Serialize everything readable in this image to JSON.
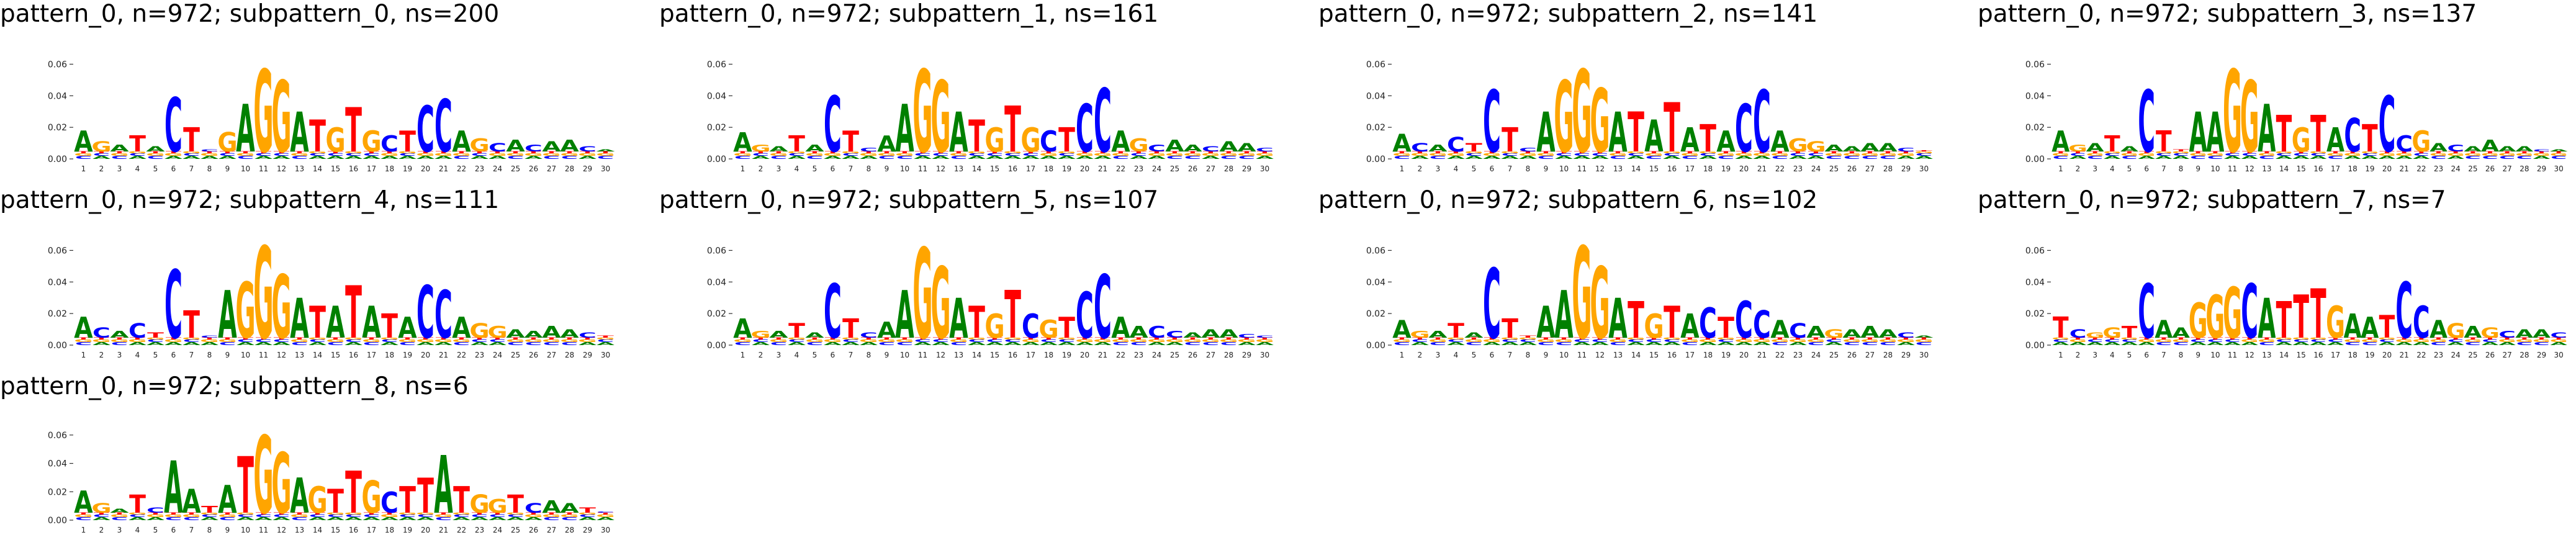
{
  "chart_data": [
    {
      "type": "sequence_logo",
      "title": "pattern_0, n=972; subpattern_0, ns=200",
      "ylim": [
        0,
        0.07
      ],
      "yticks": [
        "0.00",
        "0.02",
        "0.04",
        "0.06"
      ],
      "positions": [
        1,
        2,
        3,
        4,
        5,
        6,
        7,
        8,
        9,
        10,
        11,
        12,
        13,
        14,
        15,
        16,
        17,
        18,
        19,
        20,
        21,
        22,
        23,
        24,
        25,
        26,
        27,
        28,
        29,
        30
      ],
      "stacks": [
        [
          "A",
          0.018
        ],
        [
          "G",
          0.011
        ],
        [
          "A",
          0.009
        ],
        [
          "T",
          0.015
        ],
        [
          "A",
          0.008
        ],
        [
          "C",
          0.039
        ],
        [
          "T",
          0.02
        ],
        [
          "C",
          0.006
        ],
        [
          "G",
          0.017
        ],
        [
          "A",
          0.035
        ],
        [
          "G",
          0.057
        ],
        [
          "G",
          0.05
        ],
        [
          "A",
          0.03
        ],
        [
          "T",
          0.025
        ],
        [
          "G",
          0.02
        ],
        [
          "T",
          0.033
        ],
        [
          "G",
          0.018
        ],
        [
          "C",
          0.015
        ],
        [
          "T",
          0.018
        ],
        [
          "C",
          0.034
        ],
        [
          "C",
          0.038
        ],
        [
          "A",
          0.018
        ],
        [
          "G",
          0.013
        ],
        [
          "C",
          0.01
        ],
        [
          "A",
          0.012
        ],
        [
          "C",
          0.009
        ],
        [
          "A",
          0.011
        ],
        [
          "A",
          0.012
        ],
        [
          "C",
          0.008
        ],
        [
          "A",
          0.006
        ]
      ]
    },
    {
      "type": "sequence_logo",
      "title": "pattern_0, n=972; subpattern_1, ns=161",
      "ylim": [
        0,
        0.07
      ],
      "yticks": [
        "0.00",
        "0.02",
        "0.04",
        "0.06"
      ],
      "positions": [
        1,
        2,
        3,
        4,
        5,
        6,
        7,
        8,
        9,
        10,
        11,
        12,
        13,
        14,
        15,
        16,
        17,
        18,
        19,
        20,
        21,
        22,
        23,
        24,
        25,
        26,
        27,
        28,
        29,
        30
      ],
      "stacks": [
        [
          "A",
          0.017
        ],
        [
          "G",
          0.009
        ],
        [
          "A",
          0.008
        ],
        [
          "T",
          0.015
        ],
        [
          "A",
          0.009
        ],
        [
          "C",
          0.04
        ],
        [
          "T",
          0.018
        ],
        [
          "C",
          0.007
        ],
        [
          "A",
          0.015
        ],
        [
          "A",
          0.035
        ],
        [
          "G",
          0.057
        ],
        [
          "G",
          0.05
        ],
        [
          "A",
          0.03
        ],
        [
          "T",
          0.025
        ],
        [
          "G",
          0.02
        ],
        [
          "T",
          0.034
        ],
        [
          "G",
          0.02
        ],
        [
          "C",
          0.018
        ],
        [
          "T",
          0.02
        ],
        [
          "C",
          0.035
        ],
        [
          "C",
          0.045
        ],
        [
          "A",
          0.018
        ],
        [
          "G",
          0.013
        ],
        [
          "C",
          0.009
        ],
        [
          "A",
          0.012
        ],
        [
          "A",
          0.009
        ],
        [
          "C",
          0.008
        ],
        [
          "A",
          0.011
        ],
        [
          "A",
          0.01
        ],
        [
          "C",
          0.007
        ]
      ]
    },
    {
      "type": "sequence_logo",
      "title": "pattern_0, n=972; subpattern_2, ns=141",
      "ylim": [
        0,
        0.07
      ],
      "yticks": [
        "0.00",
        "0.02",
        "0.04",
        "0.06"
      ],
      "positions": [
        1,
        2,
        3,
        4,
        5,
        6,
        7,
        8,
        9,
        10,
        11,
        12,
        13,
        14,
        15,
        16,
        17,
        18,
        19,
        20,
        21,
        22,
        23,
        24,
        25,
        26,
        27,
        28,
        29,
        30
      ],
      "stacks": [
        [
          "A",
          0.016
        ],
        [
          "C",
          0.01
        ],
        [
          "A",
          0.009
        ],
        [
          "C",
          0.014
        ],
        [
          "T",
          0.01
        ],
        [
          "C",
          0.044
        ],
        [
          "T",
          0.02
        ],
        [
          "C",
          0.007
        ],
        [
          "A",
          0.03
        ],
        [
          "G",
          0.05
        ],
        [
          "G",
          0.057
        ],
        [
          "G",
          0.045
        ],
        [
          "A",
          0.03
        ],
        [
          "T",
          0.03
        ],
        [
          "A",
          0.025
        ],
        [
          "T",
          0.036
        ],
        [
          "A",
          0.02
        ],
        [
          "T",
          0.022
        ],
        [
          "A",
          0.018
        ],
        [
          "C",
          0.035
        ],
        [
          "C",
          0.044
        ],
        [
          "A",
          0.018
        ],
        [
          "G",
          0.013
        ],
        [
          "G",
          0.011
        ],
        [
          "A",
          0.009
        ],
        [
          "A",
          0.008
        ],
        [
          "A",
          0.01
        ],
        [
          "A",
          0.01
        ],
        [
          "C",
          0.007
        ],
        [
          "T",
          0.005
        ]
      ]
    },
    {
      "type": "sequence_logo",
      "title": "pattern_0, n=972; subpattern_3, ns=137",
      "ylim": [
        0,
        0.07
      ],
      "yticks": [
        "0.00",
        "0.02",
        "0.04",
        "0.06"
      ],
      "positions": [
        1,
        2,
        3,
        4,
        5,
        6,
        7,
        8,
        9,
        10,
        11,
        12,
        13,
        14,
        15,
        16,
        17,
        18,
        19,
        20,
        21,
        22,
        23,
        24,
        25,
        26,
        27,
        28,
        29,
        30
      ],
      "stacks": [
        [
          "A",
          0.018
        ],
        [
          "G",
          0.009
        ],
        [
          "A",
          0.01
        ],
        [
          "T",
          0.015
        ],
        [
          "A",
          0.008
        ],
        [
          "C",
          0.044
        ],
        [
          "T",
          0.018
        ],
        [
          "T",
          0.006
        ],
        [
          "A",
          0.03
        ],
        [
          "A",
          0.03
        ],
        [
          "G",
          0.057
        ],
        [
          "G",
          0.05
        ],
        [
          "A",
          0.035
        ],
        [
          "T",
          0.028
        ],
        [
          "G",
          0.02
        ],
        [
          "T",
          0.028
        ],
        [
          "A",
          0.02
        ],
        [
          "C",
          0.026
        ],
        [
          "T",
          0.022
        ],
        [
          "C",
          0.04
        ],
        [
          "C",
          0.015
        ],
        [
          "G",
          0.018
        ],
        [
          "A",
          0.01
        ],
        [
          "C",
          0.009
        ],
        [
          "A",
          0.008
        ],
        [
          "A",
          0.012
        ],
        [
          "A",
          0.008
        ],
        [
          "A",
          0.008
        ],
        [
          "C",
          0.006
        ],
        [
          "A",
          0.006
        ]
      ]
    },
    {
      "type": "sequence_logo",
      "title": "pattern_0, n=972; subpattern_4, ns=111",
      "ylim": [
        0,
        0.07
      ],
      "yticks": [
        "0.00",
        "0.02",
        "0.04",
        "0.06"
      ],
      "positions": [
        1,
        2,
        3,
        4,
        5,
        6,
        7,
        8,
        9,
        10,
        11,
        12,
        13,
        14,
        15,
        16,
        17,
        18,
        19,
        20,
        21,
        22,
        23,
        24,
        25,
        26,
        27,
        28,
        29,
        30
      ],
      "stacks": [
        [
          "A",
          0.018
        ],
        [
          "C",
          0.011
        ],
        [
          "A",
          0.009
        ],
        [
          "C",
          0.014
        ],
        [
          "T",
          0.008
        ],
        [
          "C",
          0.048
        ],
        [
          "T",
          0.022
        ],
        [
          "C",
          0.006
        ],
        [
          "A",
          0.035
        ],
        [
          "G",
          0.04
        ],
        [
          "G",
          0.063
        ],
        [
          "G",
          0.045
        ],
        [
          "A",
          0.03
        ],
        [
          "T",
          0.025
        ],
        [
          "A",
          0.025
        ],
        [
          "T",
          0.038
        ],
        [
          "A",
          0.025
        ],
        [
          "T",
          0.02
        ],
        [
          "A",
          0.018
        ],
        [
          "C",
          0.038
        ],
        [
          "C",
          0.035
        ],
        [
          "A",
          0.018
        ],
        [
          "G",
          0.014
        ],
        [
          "G",
          0.012
        ],
        [
          "A",
          0.01
        ],
        [
          "A",
          0.009
        ],
        [
          "A",
          0.012
        ],
        [
          "A",
          0.01
        ],
        [
          "C",
          0.008
        ],
        [
          "T",
          0.006
        ]
      ]
    },
    {
      "type": "sequence_logo",
      "title": "pattern_0, n=972; subpattern_5, ns=107",
      "ylim": [
        0,
        0.07
      ],
      "yticks": [
        "0.00",
        "0.02",
        "0.04",
        "0.06"
      ],
      "positions": [
        1,
        2,
        3,
        4,
        5,
        6,
        7,
        8,
        9,
        10,
        11,
        12,
        13,
        14,
        15,
        16,
        17,
        18,
        19,
        20,
        21,
        22,
        23,
        24,
        25,
        26,
        27,
        28,
        29,
        30
      ],
      "stacks": [
        [
          "A",
          0.017
        ],
        [
          "G",
          0.009
        ],
        [
          "A",
          0.009
        ],
        [
          "T",
          0.014
        ],
        [
          "A",
          0.008
        ],
        [
          "C",
          0.039
        ],
        [
          "T",
          0.017
        ],
        [
          "C",
          0.008
        ],
        [
          "A",
          0.015
        ],
        [
          "A",
          0.035
        ],
        [
          "G",
          0.062
        ],
        [
          "G",
          0.05
        ],
        [
          "A",
          0.03
        ],
        [
          "T",
          0.025
        ],
        [
          "G",
          0.02
        ],
        [
          "T",
          0.035
        ],
        [
          "C",
          0.02
        ],
        [
          "G",
          0.016
        ],
        [
          "T",
          0.018
        ],
        [
          "C",
          0.034
        ],
        [
          "C",
          0.045
        ],
        [
          "A",
          0.018
        ],
        [
          "A",
          0.012
        ],
        [
          "C",
          0.012
        ],
        [
          "C",
          0.009
        ],
        [
          "A",
          0.008
        ],
        [
          "A",
          0.01
        ],
        [
          "A",
          0.01
        ],
        [
          "C",
          0.007
        ],
        [
          "C",
          0.006
        ]
      ]
    },
    {
      "type": "sequence_logo",
      "title": "pattern_0, n=972; subpattern_6, ns=102",
      "ylim": [
        0,
        0.07
      ],
      "yticks": [
        "0.00",
        "0.02",
        "0.04",
        "0.06"
      ],
      "positions": [
        1,
        2,
        3,
        4,
        5,
        6,
        7,
        8,
        9,
        10,
        11,
        12,
        13,
        14,
        15,
        16,
        17,
        18,
        19,
        20,
        21,
        22,
        23,
        24,
        25,
        26,
        27,
        28,
        29,
        30
      ],
      "stacks": [
        [
          "A",
          0.016
        ],
        [
          "G",
          0.009
        ],
        [
          "A",
          0.009
        ],
        [
          "T",
          0.014
        ],
        [
          "A",
          0.008
        ],
        [
          "C",
          0.049
        ],
        [
          "T",
          0.017
        ],
        [
          "T",
          0.006
        ],
        [
          "A",
          0.025
        ],
        [
          "A",
          0.035
        ],
        [
          "G",
          0.063
        ],
        [
          "G",
          0.05
        ],
        [
          "A",
          0.03
        ],
        [
          "T",
          0.028
        ],
        [
          "G",
          0.02
        ],
        [
          "T",
          0.025
        ],
        [
          "A",
          0.02
        ],
        [
          "C",
          0.024
        ],
        [
          "T",
          0.018
        ],
        [
          "C",
          0.028
        ],
        [
          "C",
          0.022
        ],
        [
          "A",
          0.016
        ],
        [
          "C",
          0.014
        ],
        [
          "A",
          0.012
        ],
        [
          "G",
          0.01
        ],
        [
          "A",
          0.01
        ],
        [
          "A",
          0.012
        ],
        [
          "A",
          0.01
        ],
        [
          "C",
          0.008
        ],
        [
          "A",
          0.006
        ]
      ]
    },
    {
      "type": "sequence_logo",
      "title": "pattern_0, n=972; subpattern_7, ns=7",
      "ylim": [
        0,
        0.07
      ],
      "yticks": [
        "0.00",
        "0.02",
        "0.04",
        "0.06"
      ],
      "positions": [
        1,
        2,
        3,
        4,
        5,
        6,
        7,
        8,
        9,
        10,
        11,
        12,
        13,
        14,
        15,
        16,
        17,
        18,
        19,
        20,
        21,
        22,
        23,
        24,
        25,
        26,
        27,
        28,
        29,
        30
      ],
      "stacks": [
        [
          "T",
          0.018
        ],
        [
          "C",
          0.01
        ],
        [
          "G",
          0.008
        ],
        [
          "G",
          0.011
        ],
        [
          "T",
          0.012
        ],
        [
          "C",
          0.039
        ],
        [
          "A",
          0.016
        ],
        [
          "A",
          0.011
        ],
        [
          "G",
          0.027
        ],
        [
          "G",
          0.032
        ],
        [
          "G",
          0.037
        ],
        [
          "C",
          0.039
        ],
        [
          "A",
          0.03
        ],
        [
          "T",
          0.028
        ],
        [
          "T",
          0.032
        ],
        [
          "T",
          0.036
        ],
        [
          "G",
          0.025
        ],
        [
          "A",
          0.02
        ],
        [
          "A",
          0.018
        ],
        [
          "T",
          0.019
        ],
        [
          "C",
          0.04
        ],
        [
          "C",
          0.025
        ],
        [
          "A",
          0.016
        ],
        [
          "G",
          0.014
        ],
        [
          "A",
          0.012
        ],
        [
          "G",
          0.011
        ],
        [
          "C",
          0.009
        ],
        [
          "A",
          0.01
        ],
        [
          "A",
          0.01
        ],
        [
          "C",
          0.008
        ]
      ]
    },
    {
      "type": "sequence_logo",
      "title": "pattern_0, n=972; subpattern_8, ns=6",
      "ylim": [
        0,
        0.07
      ],
      "yticks": [
        "0.00",
        "0.02",
        "0.04",
        "0.06"
      ],
      "positions": [
        1,
        2,
        3,
        4,
        5,
        6,
        7,
        8,
        9,
        10,
        11,
        12,
        13,
        14,
        15,
        16,
        17,
        18,
        19,
        20,
        21,
        22,
        23,
        24,
        25,
        26,
        27,
        28,
        29,
        30
      ],
      "stacks": [
        [
          "A",
          0.021
        ],
        [
          "G",
          0.012
        ],
        [
          "A",
          0.008
        ],
        [
          "T",
          0.018
        ],
        [
          "C",
          0.009
        ],
        [
          "A",
          0.042
        ],
        [
          "A",
          0.022
        ],
        [
          "T",
          0.01
        ],
        [
          "A",
          0.025
        ],
        [
          "T",
          0.045
        ],
        [
          "G",
          0.06
        ],
        [
          "G",
          0.048
        ],
        [
          "A",
          0.03
        ],
        [
          "G",
          0.024
        ],
        [
          "T",
          0.022
        ],
        [
          "T",
          0.035
        ],
        [
          "G",
          0.028
        ],
        [
          "C",
          0.02
        ],
        [
          "T",
          0.024
        ],
        [
          "T",
          0.03
        ],
        [
          "A",
          0.046
        ],
        [
          "T",
          0.024
        ],
        [
          "G",
          0.018
        ],
        [
          "G",
          0.015
        ],
        [
          "T",
          0.018
        ],
        [
          "C",
          0.012
        ],
        [
          "A",
          0.014
        ],
        [
          "A",
          0.012
        ],
        [
          "T",
          0.009
        ],
        [
          "C",
          0.006
        ]
      ]
    }
  ],
  "colors": {
    "A": "#008000",
    "C": "#0000ff",
    "G": "#ffa500",
    "T": "#ff0000"
  }
}
